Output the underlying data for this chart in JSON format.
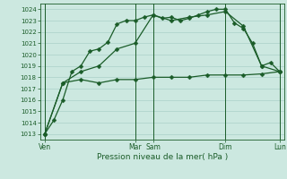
{
  "bg_color": "#cce8e0",
  "grid_color": "#aad0c8",
  "line_color": "#1a5c28",
  "title": "Pression niveau de la mer( hPa )",
  "ylim": [
    1012.5,
    1024.5
  ],
  "yticks": [
    1013,
    1014,
    1015,
    1016,
    1017,
    1018,
    1019,
    1020,
    1021,
    1022,
    1023,
    1024
  ],
  "xtick_labels": [
    "Ven",
    "Mar",
    "Sam",
    "Dim",
    "Lun"
  ],
  "xtick_positions": [
    0,
    10,
    12,
    20,
    26
  ],
  "vline_positions": [
    0,
    10,
    12,
    20,
    26
  ],
  "series1": {
    "x": [
      0,
      1,
      2,
      3,
      4,
      5,
      6,
      7,
      8,
      9,
      10,
      11,
      12,
      13,
      14,
      15,
      16,
      17,
      18,
      19,
      20,
      21,
      22,
      23,
      24,
      25,
      26
    ],
    "y": [
      1013.0,
      1014.2,
      1016.0,
      1018.5,
      1019.0,
      1020.3,
      1020.5,
      1021.1,
      1022.7,
      1023.0,
      1023.0,
      1023.3,
      1023.5,
      1023.2,
      1023.3,
      1023.0,
      1023.2,
      1023.5,
      1023.8,
      1024.0,
      1024.0,
      1022.8,
      1022.3,
      1021.0,
      1019.0,
      1019.3,
      1018.5
    ]
  },
  "series2": {
    "x": [
      0,
      2,
      4,
      6,
      8,
      10,
      12,
      14,
      16,
      18,
      20,
      22,
      24,
      26
    ],
    "y": [
      1013.0,
      1017.5,
      1018.5,
      1019.0,
      1020.5,
      1021.0,
      1023.5,
      1023.0,
      1023.3,
      1023.5,
      1023.8,
      1022.5,
      1019.0,
      1018.5
    ]
  },
  "series3": {
    "x": [
      0,
      2,
      4,
      6,
      8,
      10,
      12,
      14,
      16,
      18,
      20,
      22,
      24,
      26
    ],
    "y": [
      1013.0,
      1017.5,
      1017.8,
      1017.5,
      1017.8,
      1017.8,
      1018.0,
      1018.0,
      1018.0,
      1018.2,
      1018.2,
      1018.2,
      1018.3,
      1018.5
    ]
  },
  "marker": "D",
  "marker_size": 2.5,
  "linewidth": 0.9
}
